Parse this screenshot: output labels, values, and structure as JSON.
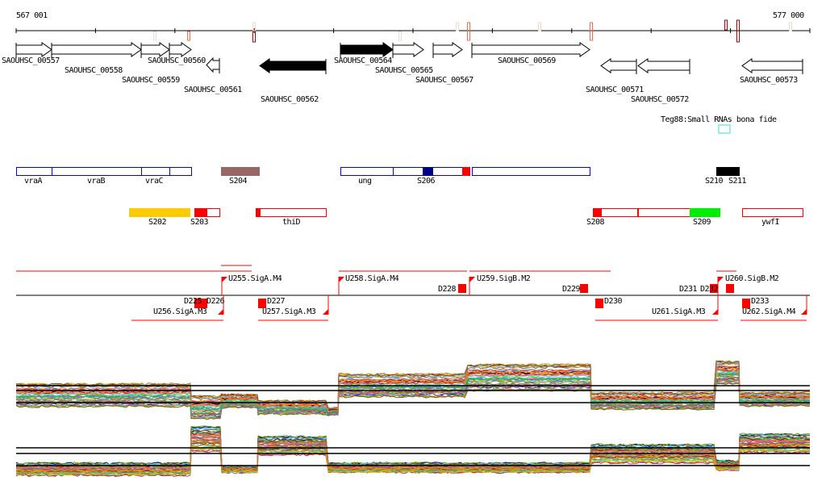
{
  "ruler": {
    "start_label": "567 001",
    "end_label": "577 000"
  },
  "genes": [
    {
      "label": "SAOUHSC_00557",
      "strand": "+",
      "fill": "white"
    },
    {
      "label": "SAOUHSC_00558",
      "strand": "+",
      "fill": "white"
    },
    {
      "label": "SAOUHSC_00559",
      "strand": "+",
      "fill": "white"
    },
    {
      "label": "SAOUHSC_00560",
      "strand": "+",
      "fill": "white"
    },
    {
      "label": "SAOUHSC_00561",
      "strand": "-",
      "fill": "white"
    },
    {
      "label": "SAOUHSC_00562",
      "strand": "-",
      "fill": "black"
    },
    {
      "label": "SAOUHSC_00564",
      "strand": "+",
      "fill": "black"
    },
    {
      "label": "SAOUHSC_00565",
      "strand": "+",
      "fill": "white"
    },
    {
      "label": "SAOUHSC_00567",
      "strand": "+",
      "fill": "white"
    },
    {
      "label": "SAOUHSC_00569",
      "strand": "+",
      "fill": "white"
    },
    {
      "label": "SAOUHSC_00571",
      "strand": "-",
      "fill": "white"
    },
    {
      "label": "SAOUHSC_00572",
      "strand": "-",
      "fill": "white"
    },
    {
      "label": "SAOUHSC_00573",
      "strand": "-",
      "fill": "white"
    }
  ],
  "small_rna_track": {
    "label": "Teg88:Small RNAs bona fide",
    "color": "#33dddd"
  },
  "feature_row_plus": [
    {
      "label": "vraA"
    },
    {
      "label": "vraB"
    },
    {
      "label": "vraC"
    },
    {
      "label": "S204",
      "color": "#996666"
    },
    {
      "label": "ung"
    },
    {
      "label": "S206",
      "color": "#000088"
    },
    {
      "label": "S210"
    },
    {
      "label": "S211"
    }
  ],
  "feature_row_minus": [
    {
      "label": "S202",
      "color": "#ffcc00"
    },
    {
      "label": "S203"
    },
    {
      "label": "thiD"
    },
    {
      "label": "S208"
    },
    {
      "label": "S209",
      "color": "#00ee00"
    },
    {
      "label": "ywfI"
    }
  ],
  "promoters": [
    {
      "label": "U255.SigA.M4"
    },
    {
      "label": "U258.SigA.M4"
    },
    {
      "label": "U259.SigB.M2"
    },
    {
      "label": "U260.SigB.M2"
    },
    {
      "label": "U256.SigA.M3"
    },
    {
      "label": "U257.SigA.M3"
    },
    {
      "label": "U261.SigA.M3"
    },
    {
      "label": "U262.SigA.M4"
    }
  ],
  "terminators": [
    {
      "label": "D225"
    },
    {
      "label": "D226"
    },
    {
      "label": "D227"
    },
    {
      "label": "D228"
    },
    {
      "label": "D229"
    },
    {
      "label": "D230"
    },
    {
      "label": "D231"
    },
    {
      "label": "D232"
    },
    {
      "label": "D233"
    }
  ],
  "colors": {
    "accent_red": "#ff0000",
    "gene_blue": "#0000ff",
    "axis": "#000000"
  }
}
